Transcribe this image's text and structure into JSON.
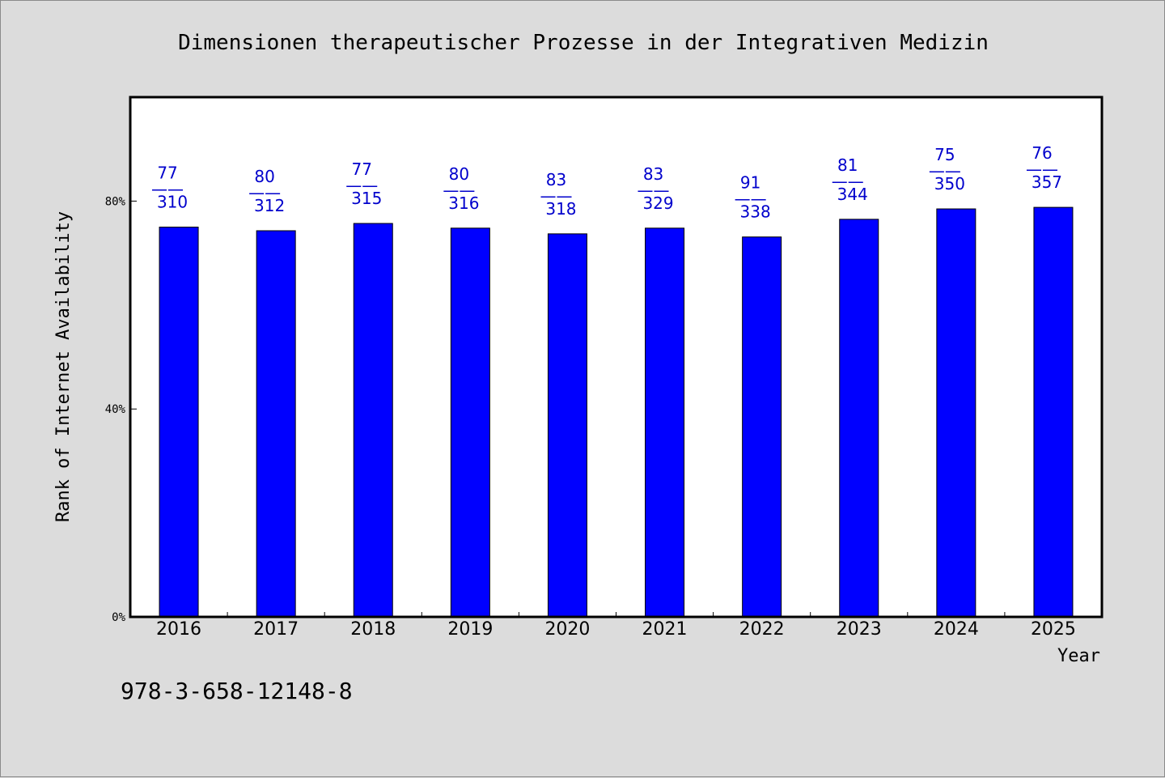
{
  "chart_data": {
    "type": "bar",
    "title": "Dimensionen therapeutischer Prozesse in der Integrativen Medizin",
    "xlabel": "Year",
    "ylabel": "Rank of Internet Availability",
    "categories": [
      "2016",
      "2017",
      "2018",
      "2019",
      "2020",
      "2021",
      "2022",
      "2023",
      "2024",
      "2025"
    ],
    "values": [
      75.0,
      74.3,
      75.7,
      74.8,
      73.7,
      74.8,
      73.1,
      76.5,
      78.5,
      78.8
    ],
    "data_labels": [
      {
        "top": "77",
        "sep": "——",
        "bottom": "310"
      },
      {
        "top": "80",
        "sep": "——",
        "bottom": "312"
      },
      {
        "top": "77",
        "sep": "——",
        "bottom": "315"
      },
      {
        "top": "80",
        "sep": "——",
        "bottom": "316"
      },
      {
        "top": "83",
        "sep": "——",
        "bottom": "318"
      },
      {
        "top": "83",
        "sep": "——",
        "bottom": "329"
      },
      {
        "top": "91",
        "sep": "——",
        "bottom": "338"
      },
      {
        "top": "81",
        "sep": "——",
        "bottom": "344"
      },
      {
        "top": "75",
        "sep": "——",
        "bottom": "350"
      },
      {
        "top": "76",
        "sep": "——",
        "bottom": "357"
      }
    ],
    "ylim": [
      0,
      100
    ],
    "yticks": [
      {
        "value": 0,
        "label": "0%"
      },
      {
        "value": 40,
        "label": "40%"
      },
      {
        "value": 80,
        "label": "80%"
      }
    ],
    "grid": false,
    "bar_color": "#0000ff",
    "label_color": "#0000cc",
    "plot_background": "#ffffff",
    "page_background": "#dcdcdc"
  },
  "footnote": "978-3-658-12148-8"
}
